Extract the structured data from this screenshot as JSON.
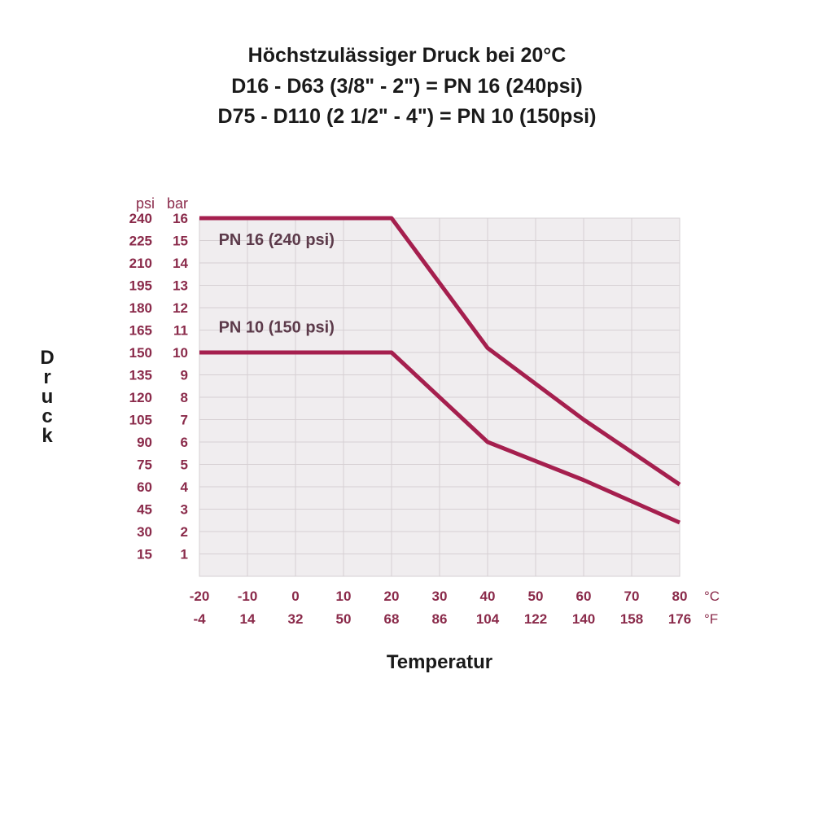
{
  "header": {
    "line1": "Höchstzulässiger Druck bei 20°C",
    "line2": "D16 - D63 (3/8\" - 2\") = PN 16 (240psi)",
    "line3": "D75 - D110 (2 1/2\" - 4\") = PN 10 (150psi)",
    "fontsize": 25,
    "color": "#1a1a1a"
  },
  "chart": {
    "type": "line",
    "background_color": "#f0edef",
    "grid_color": "#d6d0d3",
    "line_color": "#a51f4e",
    "line_width": 5,
    "label_color": "#8a2a4a",
    "annot_color": "#5c3a4a",
    "header_psi": "psi",
    "header_bar": "bar",
    "unit_c": "°C",
    "unit_f": "°F",
    "y_axis_title": "Druck",
    "x_axis_title": "Temperatur",
    "y_ticks_bar": [
      1,
      2,
      3,
      4,
      5,
      6,
      7,
      8,
      9,
      10,
      11,
      12,
      13,
      14,
      15,
      16
    ],
    "y_ticks_psi": [
      15,
      30,
      45,
      60,
      75,
      90,
      105,
      120,
      135,
      150,
      165,
      180,
      195,
      210,
      225,
      240
    ],
    "x_ticks_c": [
      -20,
      -10,
      0,
      10,
      20,
      30,
      40,
      50,
      60,
      70,
      80
    ],
    "x_ticks_f": [
      -4,
      14,
      32,
      50,
      68,
      86,
      104,
      122,
      140,
      158,
      176
    ],
    "y_min": 0,
    "y_max": 16,
    "x_min": -20,
    "x_max": 80,
    "tick_fontsize": 17,
    "header_fontsize": 18,
    "annot_fontsize": 20,
    "axis_title_fontsize": 24,
    "series": [
      {
        "name": "PN16",
        "label": "PN 16 (240 psi)",
        "label_xy": [
          -16,
          14.8
        ],
        "points": [
          [
            -20,
            16
          ],
          [
            20,
            16
          ],
          [
            40,
            10.2
          ],
          [
            60,
            7
          ],
          [
            80,
            4.1
          ]
        ]
      },
      {
        "name": "PN10",
        "label": "PN 10 (150 psi)",
        "label_xy": [
          -16,
          10.9
        ],
        "points": [
          [
            -20,
            10
          ],
          [
            20,
            10
          ],
          [
            40,
            6
          ],
          [
            60,
            4.3
          ],
          [
            80,
            2.4
          ]
        ]
      }
    ]
  }
}
